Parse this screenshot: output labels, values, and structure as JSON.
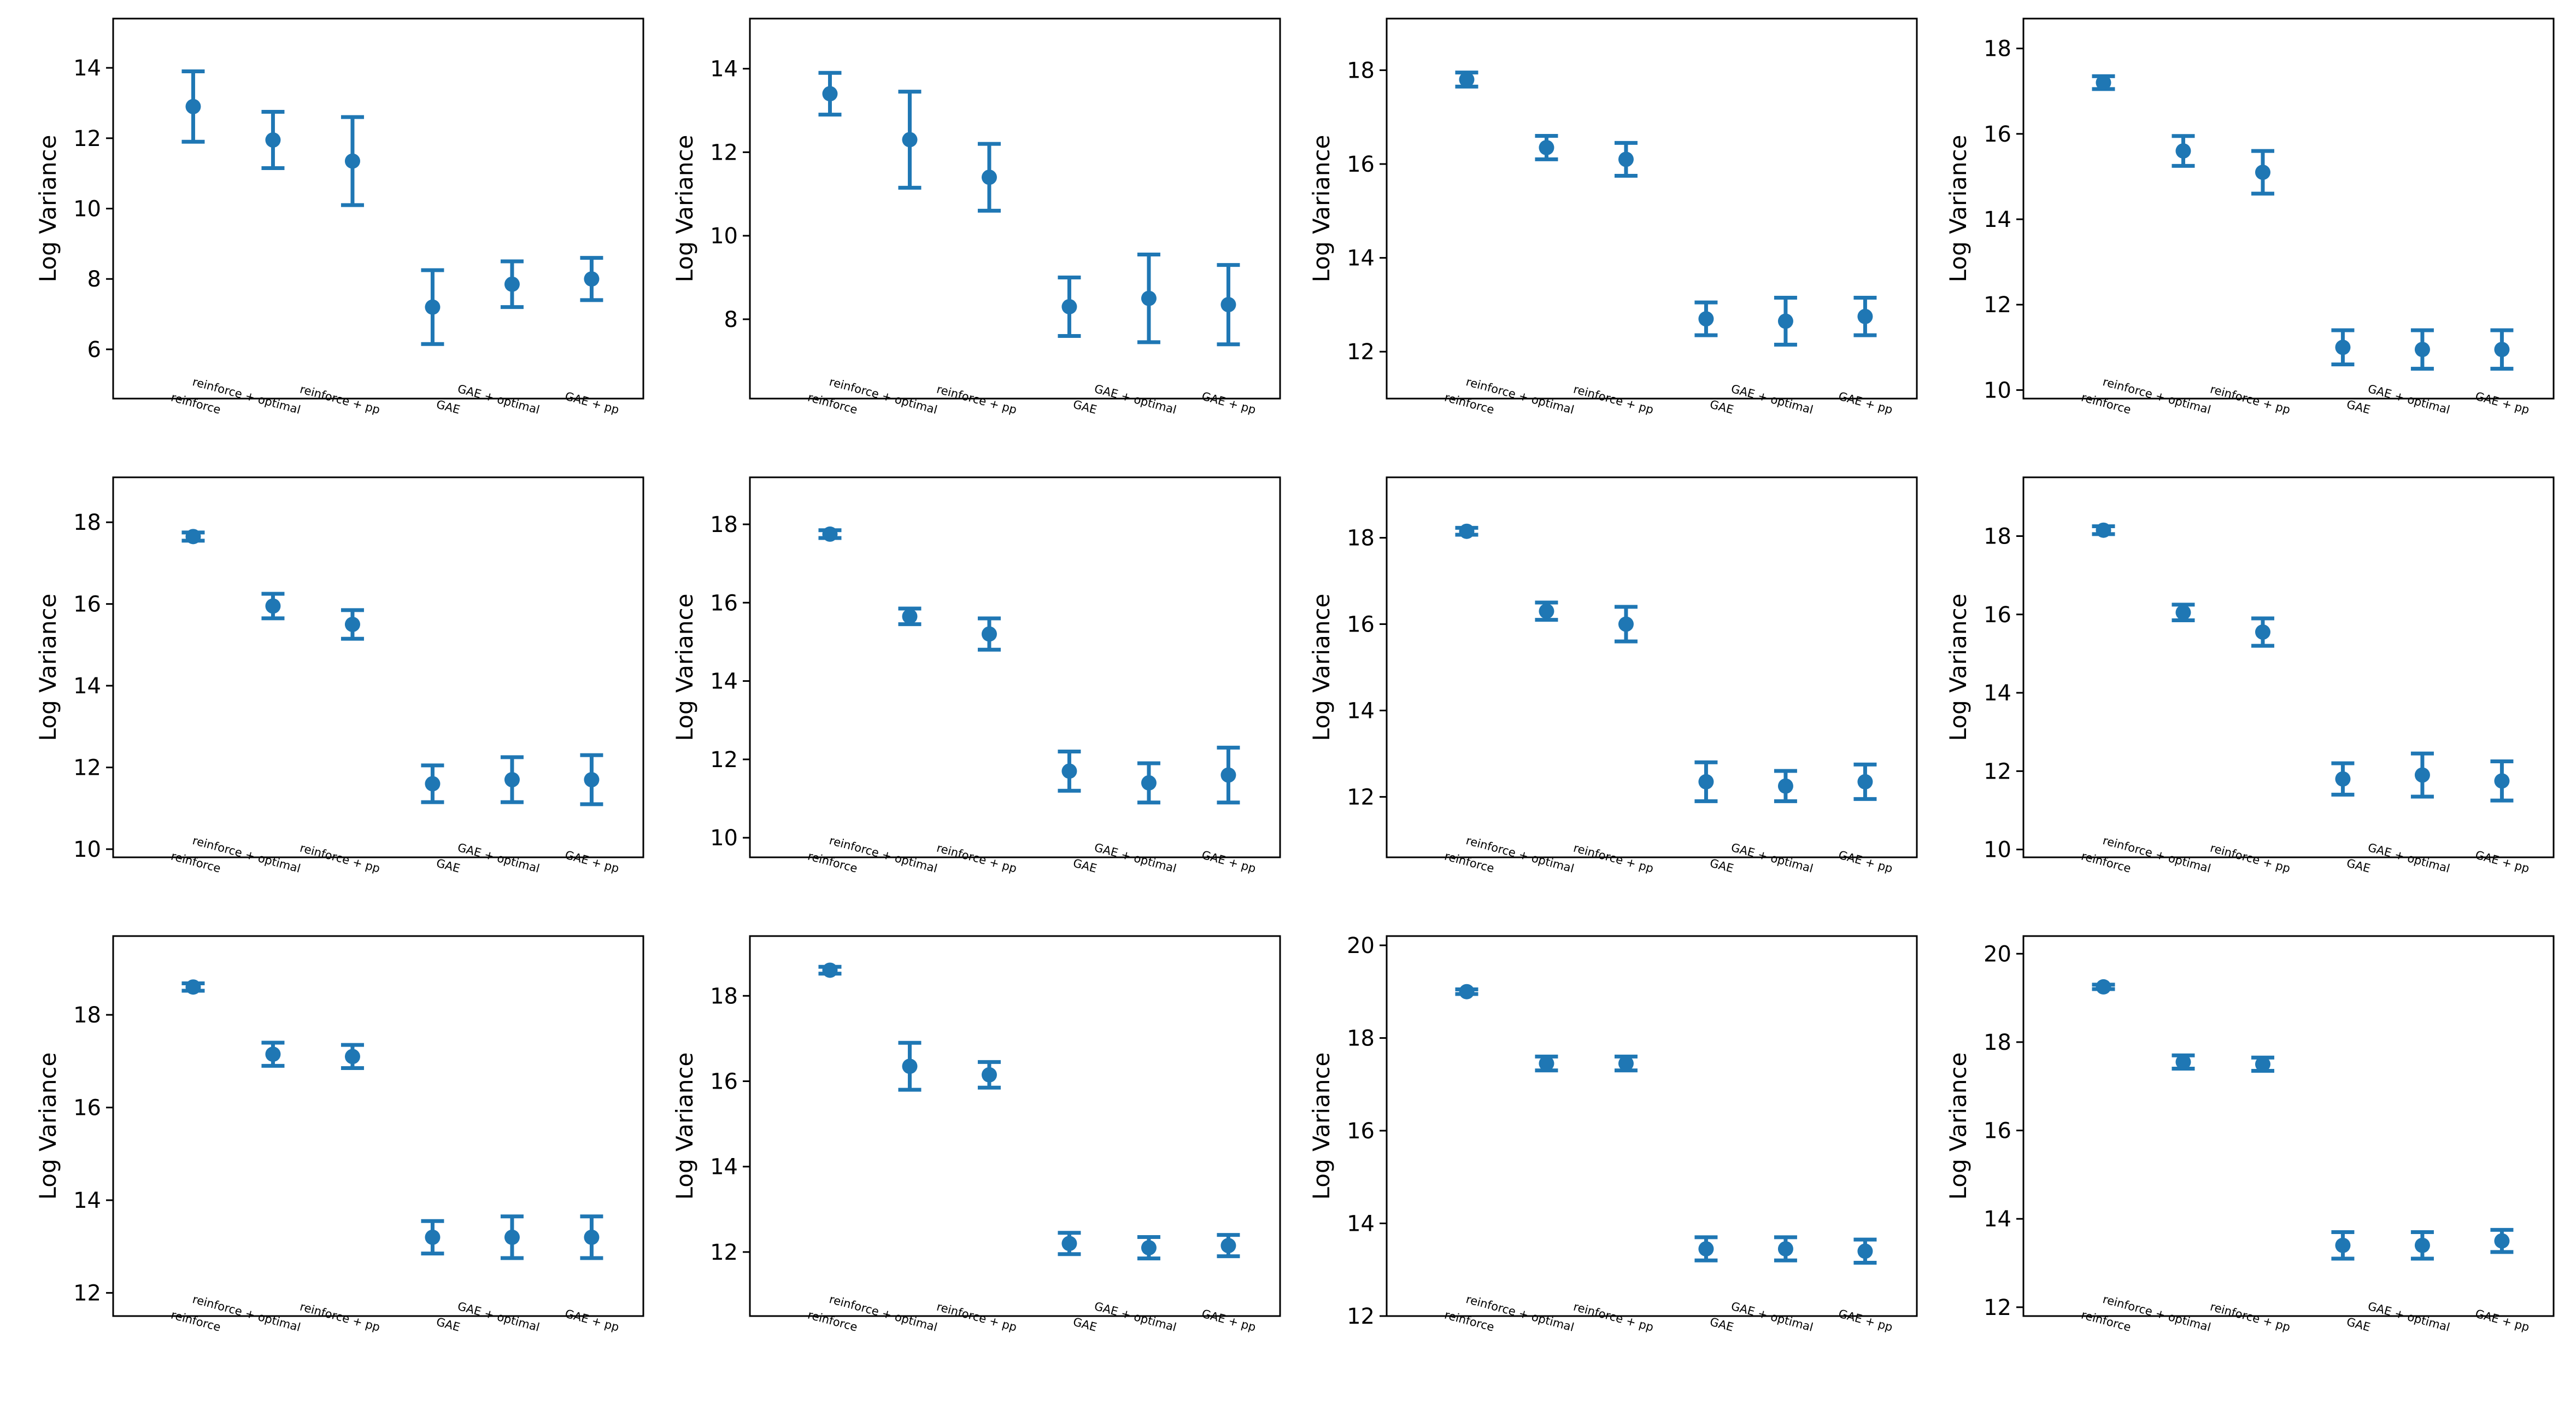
{
  "chart_data": [
    {
      "type": "errorbar",
      "ylabel": "Log Variance",
      "ylim": [
        4.6,
        15.4
      ],
      "yticks": [
        6,
        8,
        10,
        12,
        14
      ],
      "categories": [
        "reinforce",
        "reinforce + optimal",
        "reinforce + pp",
        "GAE",
        "GAE + optimal",
        "GAE + pp"
      ],
      "values": [
        12.9,
        11.95,
        11.35,
        7.2,
        7.85,
        8.0
      ],
      "errors": [
        1.0,
        0.8,
        1.25,
        1.05,
        0.65,
        0.6
      ],
      "color": "#1f77b4"
    },
    {
      "type": "errorbar",
      "ylabel": "Log Variance",
      "ylim": [
        6.1,
        15.2
      ],
      "yticks": [
        8,
        10,
        12,
        14
      ],
      "categories": [
        "reinforce",
        "reinforce + optimal",
        "reinforce + pp",
        "GAE",
        "GAE + optimal",
        "GAE + pp"
      ],
      "values": [
        13.4,
        12.3,
        11.4,
        8.3,
        8.5,
        8.35
      ],
      "errors": [
        0.5,
        1.15,
        0.8,
        0.7,
        1.05,
        0.95
      ],
      "color": "#1f77b4"
    },
    {
      "type": "errorbar",
      "ylabel": "Log Variance",
      "ylim": [
        11.0,
        19.1
      ],
      "yticks": [
        12,
        14,
        16,
        18
      ],
      "categories": [
        "reinforce",
        "reinforce + optimal",
        "reinforce + pp",
        "GAE",
        "GAE + optimal",
        "GAE + pp"
      ],
      "values": [
        17.8,
        16.35,
        16.1,
        12.7,
        12.65,
        12.75
      ],
      "errors": [
        0.15,
        0.25,
        0.35,
        0.35,
        0.5,
        0.4
      ],
      "color": "#1f77b4"
    },
    {
      "type": "errorbar",
      "ylabel": "Log Variance",
      "ylim": [
        9.8,
        18.7
      ],
      "yticks": [
        10,
        12,
        14,
        16,
        18
      ],
      "categories": [
        "reinforce",
        "reinforce + optimal",
        "reinforce + pp",
        "GAE",
        "GAE + optimal",
        "GAE + pp"
      ],
      "values": [
        17.2,
        15.6,
        15.1,
        11.0,
        10.95,
        10.95
      ],
      "errors": [
        0.15,
        0.35,
        0.5,
        0.4,
        0.45,
        0.45
      ],
      "color": "#1f77b4"
    },
    {
      "type": "errorbar",
      "ylabel": "Log Variance",
      "ylim": [
        9.8,
        19.1
      ],
      "yticks": [
        10,
        12,
        14,
        16,
        18
      ],
      "categories": [
        "reinforce",
        "reinforce + optimal",
        "reinforce + pp",
        "GAE",
        "GAE + optimal",
        "GAE + pp"
      ],
      "values": [
        17.65,
        15.95,
        15.5,
        11.6,
        11.7,
        11.7
      ],
      "errors": [
        0.1,
        0.3,
        0.35,
        0.45,
        0.55,
        0.6
      ],
      "color": "#1f77b4"
    },
    {
      "type": "errorbar",
      "ylabel": "Log Variance",
      "ylim": [
        9.5,
        19.2
      ],
      "yticks": [
        10,
        12,
        14,
        16,
        18
      ],
      "categories": [
        "reinforce",
        "reinforce + optimal",
        "reinforce + pp",
        "GAE",
        "GAE + optimal",
        "GAE + pp"
      ],
      "values": [
        17.75,
        15.65,
        15.2,
        11.7,
        11.4,
        11.6
      ],
      "errors": [
        0.1,
        0.2,
        0.4,
        0.5,
        0.5,
        0.7
      ],
      "color": "#1f77b4"
    },
    {
      "type": "errorbar",
      "ylabel": "Log Variance",
      "ylim": [
        10.6,
        19.4
      ],
      "yticks": [
        12,
        14,
        16,
        18
      ],
      "categories": [
        "reinforce",
        "reinforce + optimal",
        "reinforce + pp",
        "GAE",
        "GAE + optimal",
        "GAE + pp"
      ],
      "values": [
        18.15,
        16.3,
        16.0,
        12.35,
        12.25,
        12.35
      ],
      "errors": [
        0.08,
        0.2,
        0.4,
        0.45,
        0.35,
        0.4
      ],
      "color": "#1f77b4"
    },
    {
      "type": "errorbar",
      "ylabel": "Log Variance",
      "ylim": [
        9.8,
        19.5
      ],
      "yticks": [
        10,
        12,
        14,
        16,
        18
      ],
      "categories": [
        "reinforce",
        "reinforce + optimal",
        "reinforce + pp",
        "GAE",
        "GAE + optimal",
        "GAE + pp"
      ],
      "values": [
        18.15,
        16.05,
        15.55,
        11.8,
        11.9,
        11.75
      ],
      "errors": [
        0.1,
        0.2,
        0.35,
        0.4,
        0.55,
        0.5
      ],
      "color": "#1f77b4"
    },
    {
      "type": "errorbar",
      "ylabel": "Log Variance",
      "ylim": [
        11.5,
        19.7
      ],
      "yticks": [
        12,
        14,
        16,
        18
      ],
      "categories": [
        "reinforce",
        "reinforce + optimal",
        "reinforce + pp",
        "GAE",
        "GAE + optimal",
        "GAE + pp"
      ],
      "values": [
        18.6,
        17.15,
        17.1,
        13.2,
        13.2,
        13.2
      ],
      "errors": [
        0.08,
        0.25,
        0.25,
        0.35,
        0.45,
        0.45
      ],
      "color": "#1f77b4"
    },
    {
      "type": "errorbar",
      "ylabel": "Log Variance",
      "ylim": [
        10.5,
        19.4
      ],
      "yticks": [
        12,
        14,
        16,
        18
      ],
      "categories": [
        "reinforce",
        "reinforce + optimal",
        "reinforce + pp",
        "GAE",
        "GAE + optimal",
        "GAE + pp"
      ],
      "values": [
        18.6,
        16.35,
        16.15,
        12.2,
        12.1,
        12.15
      ],
      "errors": [
        0.08,
        0.55,
        0.3,
        0.25,
        0.25,
        0.25
      ],
      "color": "#1f77b4"
    },
    {
      "type": "errorbar",
      "ylabel": "Log Variance",
      "ylim": [
        12.0,
        20.2
      ],
      "yticks": [
        12,
        14,
        16,
        18,
        20
      ],
      "categories": [
        "reinforce",
        "reinforce + optimal",
        "reinforce + pp",
        "GAE",
        "GAE + optimal",
        "GAE + pp"
      ],
      "values": [
        19.0,
        17.45,
        17.45,
        13.45,
        13.45,
        13.4
      ],
      "errors": [
        0.05,
        0.15,
        0.15,
        0.25,
        0.25,
        0.25
      ],
      "color": "#1f77b4"
    },
    {
      "type": "errorbar",
      "ylabel": "Log Variance",
      "ylim": [
        11.8,
        20.4
      ],
      "yticks": [
        12,
        14,
        16,
        18,
        20
      ],
      "categories": [
        "reinforce",
        "reinforce + optimal",
        "reinforce + pp",
        "GAE",
        "GAE + optimal",
        "GAE + pp"
      ],
      "values": [
        19.25,
        17.55,
        17.5,
        13.4,
        13.4,
        13.5
      ],
      "errors": [
        0.05,
        0.15,
        0.15,
        0.3,
        0.3,
        0.25
      ],
      "color": "#1f77b4"
    }
  ]
}
